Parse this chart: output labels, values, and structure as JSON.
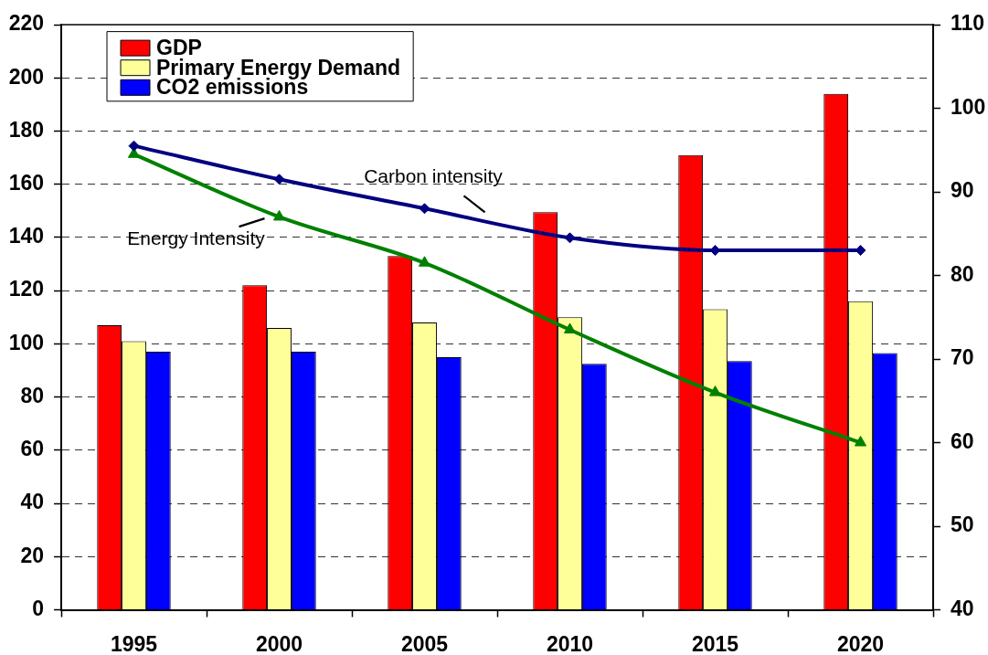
{
  "chart_data": {
    "type": "bar",
    "categories": [
      "1995",
      "2000",
      "2005",
      "2010",
      "2015",
      "2020"
    ],
    "series": [
      {
        "name": "GDP",
        "color": "#ff0000",
        "values": [
          107,
          122,
          133,
          149.5,
          171,
          194
        ]
      },
      {
        "name": "Primary Energy Demand",
        "color": "#ffff99",
        "values": [
          101,
          106,
          108,
          110,
          113,
          116
        ]
      },
      {
        "name": "CO2 emissions",
        "color": "#0000ff",
        "values": [
          97,
          97,
          95,
          92.5,
          93.5,
          96.5
        ]
      },
      {
        "name": "Carbon intensity",
        "type": "line",
        "axis": "y2",
        "color": "#000080",
        "marker": "diamond",
        "values": [
          95.5,
          91.5,
          88,
          84.5,
          83,
          83
        ]
      },
      {
        "name": "Energy Intensity",
        "type": "line",
        "axis": "y2",
        "color": "#008000",
        "marker": "triangle",
        "values": [
          94.5,
          87,
          81.5,
          73.5,
          66,
          60
        ]
      }
    ],
    "ylim": [
      0,
      220
    ],
    "yticks": [
      0,
      20,
      40,
      60,
      80,
      100,
      120,
      140,
      160,
      180,
      200,
      220
    ],
    "y2lim": [
      40,
      110
    ],
    "y2ticks": [
      40,
      50,
      60,
      70,
      80,
      90,
      100,
      110
    ],
    "grid": "y",
    "legend": "top left"
  }
}
